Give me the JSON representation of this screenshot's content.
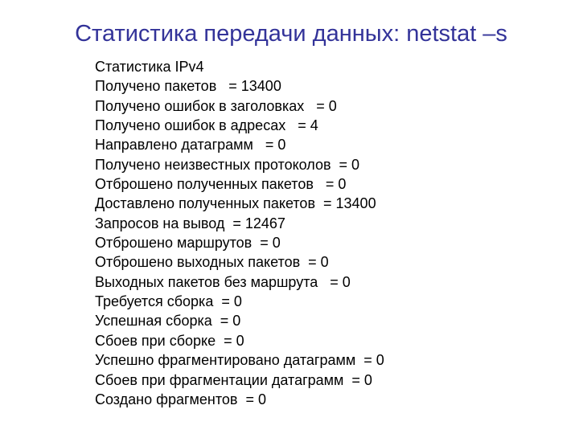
{
  "title": "Статистика передачи данных: netstat –s",
  "lines": [
    "Статистика IPv4",
    "Получено пакетов   = 13400",
    "Получено ошибок в заголовках   = 0",
    "Получено ошибок в адресах   = 4",
    "Направлено датаграмм   = 0",
    "Получено неизвестных протоколов  = 0",
    "Отброшено полученных пакетов   = 0",
    "Доставлено полученных пакетов  = 13400",
    "Запросов на вывод  = 12467",
    "Отброшено маршрутов  = 0",
    "Отброшено выходных пакетов  = 0",
    "Выходных пакетов без маршрута   = 0",
    "Требуется сборка  = 0",
    "Успешная сборка  = 0",
    "Сбоев при сборке  = 0",
    "Успешно фрагментировано датаграмм  = 0",
    "Сбоев при фрагментации датаграмм  = 0",
    "Создано фрагментов  = 0"
  ]
}
